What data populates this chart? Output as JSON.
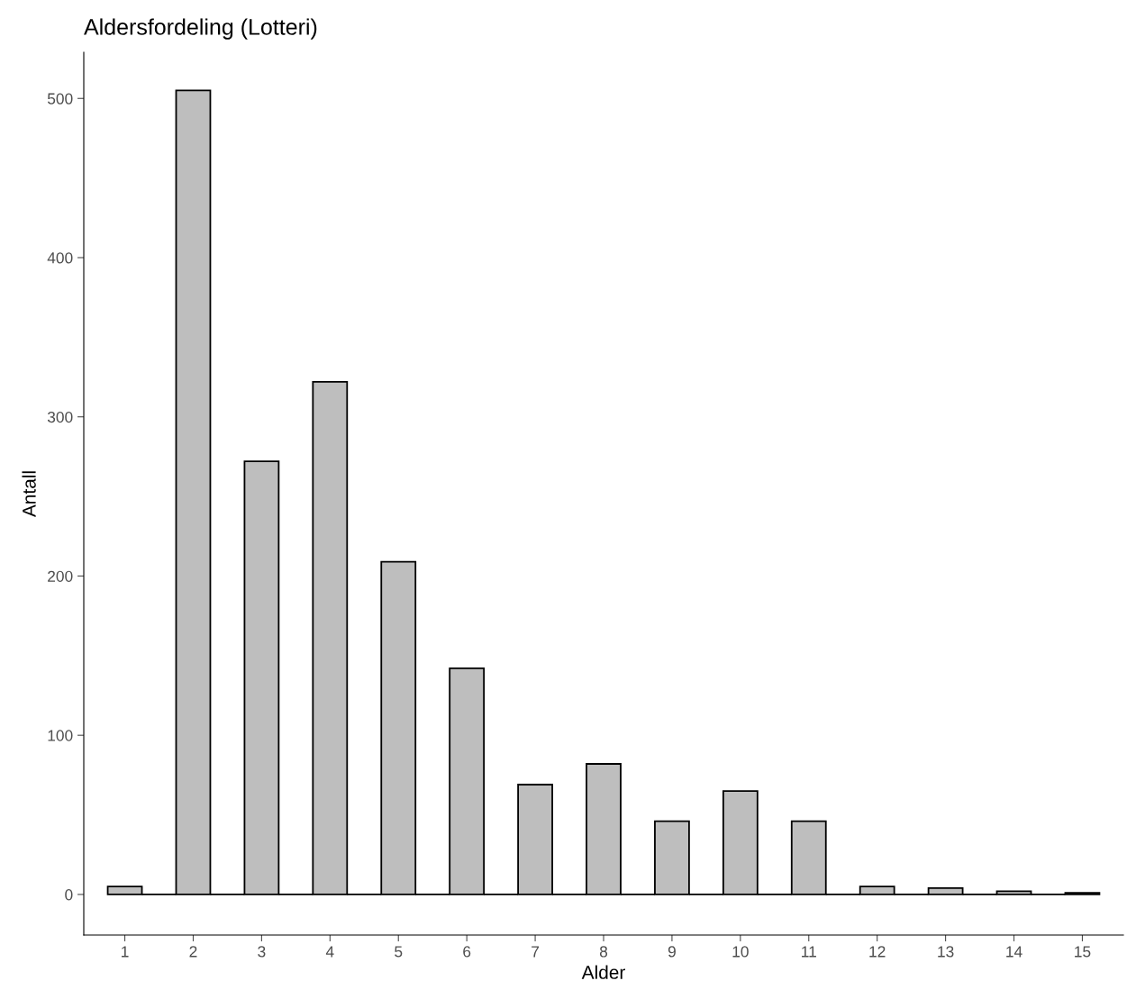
{
  "chart_data": {
    "type": "histogram",
    "title": "Aldersfordeling (Lotteri)",
    "xlabel": "Alder",
    "ylabel": "Antall",
    "bins": [
      0.75,
      1.25,
      1.75,
      2.25,
      2.75,
      3.25,
      3.75,
      4.25,
      4.75,
      5.25,
      5.75,
      6.25,
      6.75,
      7.25,
      7.75,
      8.25,
      8.75,
      9.25,
      9.75,
      10.25,
      10.75,
      11.25,
      11.75,
      12.25,
      12.75,
      13.25,
      13.75,
      14.25,
      14.75,
      15.25
    ],
    "values": [
      5,
      0,
      505,
      0,
      272,
      0,
      322,
      0,
      209,
      0,
      142,
      0,
      69,
      0,
      82,
      0,
      46,
      0,
      65,
      0,
      46,
      0,
      5,
      0,
      4,
      0,
      2,
      0,
      1
    ],
    "colors": [
      "#bebebe",
      "#000000",
      "#bebebe",
      "#000000",
      "#bebebe",
      "#000000",
      "#bebebe",
      "#000000",
      "#bebebe",
      "#000000",
      "#bebebe",
      "#000000",
      "#bebebe",
      "#000000",
      "#bebebe",
      "#000000",
      "#bebebe",
      "#000000",
      "#bebebe",
      "#000000",
      "#bebebe",
      "#000000",
      "#bebebe",
      "#000000",
      "#bebebe",
      "#000000",
      "#bebebe",
      "#000000",
      "#bebebe"
    ],
    "xlim": [
      0.4,
      15.6
    ],
    "xticks": [
      1,
      2,
      3,
      4,
      5,
      6,
      7,
      8,
      9,
      10,
      11,
      12,
      13,
      14,
      15
    ],
    "ylim": [
      -25.5,
      529
    ],
    "yticks": [
      0,
      100,
      200,
      300,
      400,
      500
    ],
    "grid": false
  }
}
